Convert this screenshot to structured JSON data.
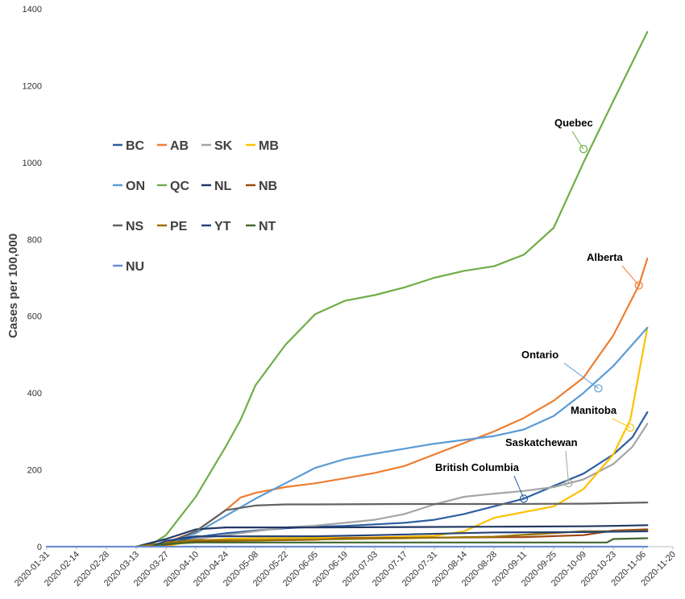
{
  "chart_data": {
    "type": "line",
    "ylabel": "Cases per 100,000",
    "xlabel": "",
    "ylim": [
      0,
      1400
    ],
    "yticks": [
      0,
      200,
      400,
      600,
      800,
      1000,
      1200,
      1400
    ],
    "xlim": [
      "2020-01-31",
      "2020-11-20"
    ],
    "xticks": [
      "2020-01-31",
      "2020-02-14",
      "2020-02-28",
      "2020-03-13",
      "2020-03-27",
      "2020-04-10",
      "2020-04-24",
      "2020-05-08",
      "2020-05-22",
      "2020-06-05",
      "2020-06-19",
      "2020-07-03",
      "2020-07-17",
      "2020-07-31",
      "2020-08-14",
      "2020-08-28",
      "2020-09-11",
      "2020-09-25",
      "2020-10-09",
      "2020-10-23",
      "2020-11-06",
      "2020-11-20"
    ],
    "grid": false,
    "legend": "left, 4 columns",
    "series": [
      {
        "name": "BC",
        "color": "#2E5FA3",
        "points": [
          [
            "2020-03-13",
            0
          ],
          [
            "2020-03-27",
            8
          ],
          [
            "2020-04-10",
            25
          ],
          [
            "2020-04-24",
            35
          ],
          [
            "2020-05-08",
            42
          ],
          [
            "2020-05-22",
            48
          ],
          [
            "2020-06-05",
            52
          ],
          [
            "2020-06-19",
            54
          ],
          [
            "2020-07-03",
            58
          ],
          [
            "2020-07-17",
            62
          ],
          [
            "2020-07-31",
            70
          ],
          [
            "2020-08-14",
            85
          ],
          [
            "2020-08-28",
            105
          ],
          [
            "2020-09-11",
            125
          ],
          [
            "2020-09-25",
            158
          ],
          [
            "2020-10-09",
            190
          ],
          [
            "2020-10-23",
            240
          ],
          [
            "2020-11-01",
            285
          ],
          [
            "2020-11-08",
            350
          ]
        ]
      },
      {
        "name": "AB",
        "color": "#ED7D31",
        "points": [
          [
            "2020-03-13",
            0
          ],
          [
            "2020-03-27",
            10
          ],
          [
            "2020-04-10",
            40
          ],
          [
            "2020-04-24",
            95
          ],
          [
            "2020-05-01",
            128
          ],
          [
            "2020-05-08",
            140
          ],
          [
            "2020-05-22",
            155
          ],
          [
            "2020-06-05",
            165
          ],
          [
            "2020-06-19",
            178
          ],
          [
            "2020-07-03",
            192
          ],
          [
            "2020-07-17",
            210
          ],
          [
            "2020-07-31",
            240
          ],
          [
            "2020-08-14",
            270
          ],
          [
            "2020-08-28",
            300
          ],
          [
            "2020-09-11",
            335
          ],
          [
            "2020-09-25",
            380
          ],
          [
            "2020-10-09",
            440
          ],
          [
            "2020-10-23",
            550
          ],
          [
            "2020-11-04",
            680
          ],
          [
            "2020-11-08",
            750
          ]
        ]
      },
      {
        "name": "SK",
        "color": "#A5A5A5",
        "points": [
          [
            "2020-03-13",
            0
          ],
          [
            "2020-03-27",
            5
          ],
          [
            "2020-04-10",
            20
          ],
          [
            "2020-04-24",
            30
          ],
          [
            "2020-05-08",
            40
          ],
          [
            "2020-05-22",
            50
          ],
          [
            "2020-06-05",
            55
          ],
          [
            "2020-06-19",
            62
          ],
          [
            "2020-07-03",
            70
          ],
          [
            "2020-07-17",
            85
          ],
          [
            "2020-07-31",
            110
          ],
          [
            "2020-08-14",
            130
          ],
          [
            "2020-08-28",
            138
          ],
          [
            "2020-09-11",
            145
          ],
          [
            "2020-09-25",
            155
          ],
          [
            "2020-10-09",
            175
          ],
          [
            "2020-10-23",
            215
          ],
          [
            "2020-11-01",
            260
          ],
          [
            "2020-11-08",
            320
          ]
        ]
      },
      {
        "name": "MB",
        "color": "#FFC000",
        "points": [
          [
            "2020-03-13",
            0
          ],
          [
            "2020-03-27",
            2
          ],
          [
            "2020-04-10",
            15
          ],
          [
            "2020-04-24",
            20
          ],
          [
            "2020-05-08",
            22
          ],
          [
            "2020-05-22",
            22
          ],
          [
            "2020-06-05",
            23
          ],
          [
            "2020-06-19",
            23
          ],
          [
            "2020-07-03",
            24
          ],
          [
            "2020-07-17",
            26
          ],
          [
            "2020-07-31",
            28
          ],
          [
            "2020-08-14",
            40
          ],
          [
            "2020-08-28",
            75
          ],
          [
            "2020-09-11",
            90
          ],
          [
            "2020-09-25",
            105
          ],
          [
            "2020-10-09",
            150
          ],
          [
            "2020-10-23",
            240
          ],
          [
            "2020-10-31",
            330
          ],
          [
            "2020-11-04",
            450
          ],
          [
            "2020-11-08",
            570
          ]
        ]
      },
      {
        "name": "ON",
        "color": "#5B9BD5",
        "points": [
          [
            "2020-03-13",
            0
          ],
          [
            "2020-03-27",
            8
          ],
          [
            "2020-04-10",
            35
          ],
          [
            "2020-04-24",
            80
          ],
          [
            "2020-05-08",
            125
          ],
          [
            "2020-05-22",
            165
          ],
          [
            "2020-06-05",
            205
          ],
          [
            "2020-06-19",
            228
          ],
          [
            "2020-07-03",
            242
          ],
          [
            "2020-07-17",
            255
          ],
          [
            "2020-07-31",
            268
          ],
          [
            "2020-08-14",
            278
          ],
          [
            "2020-08-28",
            288
          ],
          [
            "2020-09-11",
            305
          ],
          [
            "2020-09-25",
            340
          ],
          [
            "2020-10-09",
            400
          ],
          [
            "2020-10-23",
            470
          ],
          [
            "2020-11-08",
            570
          ]
        ]
      },
      {
        "name": "QC",
        "color": "#70AD47",
        "points": [
          [
            "2020-03-13",
            0
          ],
          [
            "2020-03-20",
            5
          ],
          [
            "2020-03-27",
            30
          ],
          [
            "2020-04-10",
            130
          ],
          [
            "2020-04-24",
            260
          ],
          [
            "2020-05-01",
            330
          ],
          [
            "2020-05-08",
            420
          ],
          [
            "2020-05-22",
            525
          ],
          [
            "2020-06-05",
            605
          ],
          [
            "2020-06-19",
            640
          ],
          [
            "2020-07-03",
            655
          ],
          [
            "2020-07-17",
            675
          ],
          [
            "2020-07-31",
            700
          ],
          [
            "2020-08-14",
            718
          ],
          [
            "2020-08-28",
            730
          ],
          [
            "2020-09-11",
            760
          ],
          [
            "2020-09-25",
            830
          ],
          [
            "2020-10-09",
            1000
          ],
          [
            "2020-10-23",
            1160
          ],
          [
            "2020-11-08",
            1340
          ]
        ]
      },
      {
        "name": "NL",
        "color": "#203864",
        "points": [
          [
            "2020-03-13",
            0
          ],
          [
            "2020-03-27",
            20
          ],
          [
            "2020-04-10",
            45
          ],
          [
            "2020-04-24",
            50
          ],
          [
            "2020-05-08",
            50
          ],
          [
            "2020-06-05",
            50
          ],
          [
            "2020-08-28",
            52
          ],
          [
            "2020-10-09",
            53
          ],
          [
            "2020-10-23",
            54
          ],
          [
            "2020-11-08",
            56
          ]
        ]
      },
      {
        "name": "NB",
        "color": "#9E480E",
        "points": [
          [
            "2020-03-13",
            0
          ],
          [
            "2020-03-27",
            5
          ],
          [
            "2020-04-10",
            14
          ],
          [
            "2020-05-08",
            16
          ],
          [
            "2020-06-05",
            18
          ],
          [
            "2020-06-19",
            22
          ],
          [
            "2020-08-14",
            24
          ],
          [
            "2020-09-11",
            25
          ],
          [
            "2020-10-09",
            30
          ],
          [
            "2020-10-23",
            42
          ],
          [
            "2020-11-08",
            45
          ]
        ]
      },
      {
        "name": "NS",
        "color": "#636363",
        "points": [
          [
            "2020-03-13",
            0
          ],
          [
            "2020-03-27",
            8
          ],
          [
            "2020-04-10",
            40
          ],
          [
            "2020-04-24",
            95
          ],
          [
            "2020-05-08",
            107
          ],
          [
            "2020-05-22",
            110
          ],
          [
            "2020-06-05",
            110
          ],
          [
            "2020-07-17",
            111
          ],
          [
            "2020-08-28",
            111
          ],
          [
            "2020-10-09",
            112
          ],
          [
            "2020-11-08",
            115
          ]
        ]
      },
      {
        "name": "PE",
        "color": "#997300",
        "points": [
          [
            "2020-03-13",
            0
          ],
          [
            "2020-03-27",
            10
          ],
          [
            "2020-04-10",
            17
          ],
          [
            "2020-05-08",
            17
          ],
          [
            "2020-06-19",
            20
          ],
          [
            "2020-07-17",
            22
          ],
          [
            "2020-08-28",
            26
          ],
          [
            "2020-10-09",
            40
          ],
          [
            "2020-10-23",
            40
          ],
          [
            "2020-11-08",
            41
          ]
        ]
      },
      {
        "name": "YT",
        "color": "#264478",
        "points": [
          [
            "2020-03-20",
            0
          ],
          [
            "2020-03-27",
            15
          ],
          [
            "2020-04-10",
            27
          ],
          [
            "2020-06-05",
            27
          ],
          [
            "2020-07-03",
            30
          ],
          [
            "2020-08-28",
            37
          ],
          [
            "2020-10-09",
            38
          ],
          [
            "2020-11-08",
            40
          ]
        ]
      },
      {
        "name": "NT",
        "color": "#43682B",
        "points": [
          [
            "2020-03-20",
            0
          ],
          [
            "2020-03-27",
            7
          ],
          [
            "2020-04-10",
            11
          ],
          [
            "2020-10-20",
            11
          ],
          [
            "2020-10-23",
            20
          ],
          [
            "2020-11-08",
            22
          ]
        ]
      },
      {
        "name": "NU",
        "color": "#698ED0",
        "points": [
          [
            "2020-01-31",
            0
          ],
          [
            "2020-11-08",
            0
          ]
        ]
      }
    ],
    "annotations": [
      {
        "label": "Quebec",
        "series": "QC",
        "at": [
          "2020-10-09",
          1035
        ]
      },
      {
        "label": "Alberta",
        "series": "AB",
        "at": [
          "2020-11-04",
          680
        ]
      },
      {
        "label": "Ontario",
        "series": "ON",
        "at": [
          "2020-10-16",
          412
        ]
      },
      {
        "label": "Manitoba",
        "series": "MB",
        "at": [
          "2020-10-31",
          310
        ]
      },
      {
        "label": "Saskatchewan",
        "series": "SK",
        "at": [
          "2020-10-02",
          165
        ]
      },
      {
        "label": "British Columbia",
        "series": "BC",
        "at": [
          "2020-09-11",
          125
        ]
      }
    ]
  }
}
